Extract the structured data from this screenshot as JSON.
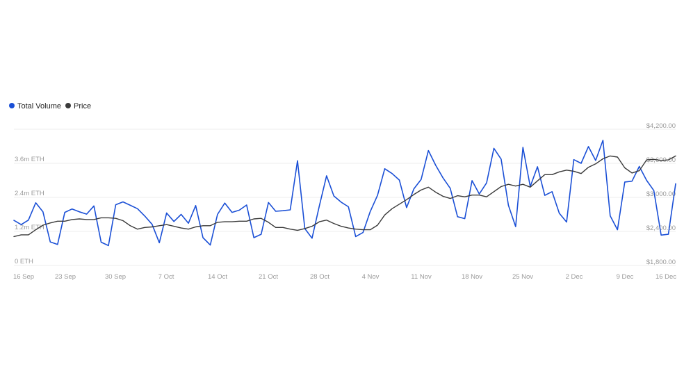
{
  "legend": {
    "volume_label": "Total Volume",
    "price_label": "Price"
  },
  "colors": {
    "volume": "#1a4fd6",
    "price": "#3a3a3a",
    "grid": "#eeeeee",
    "tick_text": "#9a9a9a"
  },
  "chart_data": {
    "type": "line",
    "title": "",
    "xlabel": "",
    "grid": true,
    "legend_position": "top-left",
    "x_ticks": [
      "16 Sep",
      "23 Sep",
      "30 Sep",
      "7 Oct",
      "14 Oct",
      "21 Oct",
      "28 Oct",
      "4 Nov",
      "11 Nov",
      "18 Nov",
      "25 Nov",
      "2 Dec",
      "9 Dec",
      "16 Dec"
    ],
    "x_range": [
      "16 Sep",
      "16 Dec"
    ],
    "left_axis": {
      "ylabel": "",
      "ylim": [
        0,
        4800000
      ],
      "ticks": [
        0,
        1200000,
        2400000,
        3600000
      ],
      "tick_labels": [
        "0 ETH",
        "1.2m ETH",
        "2.4m ETH",
        "3.6m ETH"
      ]
    },
    "right_axis": {
      "ylabel": "",
      "ylim": [
        1800,
        4200
      ],
      "ticks": [
        1800,
        2400,
        3000,
        3600,
        4200
      ],
      "tick_labels": [
        "$1,800.00",
        "$2,400.00",
        "$3,000.00",
        "$3,600.00",
        "$4,200.00"
      ]
    },
    "series": [
      {
        "name": "Total Volume",
        "axis": "left",
        "values": [
          1590000,
          1440000,
          1600000,
          2210000,
          1890000,
          830000,
          740000,
          1870000,
          1990000,
          1890000,
          1810000,
          2100000,
          820000,
          700000,
          2140000,
          2240000,
          2120000,
          2000000,
          1740000,
          1450000,
          800000,
          1850000,
          1550000,
          1800000,
          1490000,
          2110000,
          980000,
          720000,
          1800000,
          2200000,
          1870000,
          1950000,
          2130000,
          980000,
          1100000,
          2220000,
          1910000,
          1930000,
          1960000,
          3690000,
          1300000,
          960000,
          2100000,
          3160000,
          2450000,
          2230000,
          2070000,
          1020000,
          1160000,
          1900000,
          2470000,
          3410000,
          3240000,
          3010000,
          2040000,
          2700000,
          3030000,
          4050000,
          3530000,
          3090000,
          2720000,
          1720000,
          1650000,
          2990000,
          2520000,
          2910000,
          4130000,
          3750000,
          2120000,
          1370000,
          4160000,
          2780000,
          3480000,
          2470000,
          2600000,
          1840000,
          1530000,
          3730000,
          3600000,
          4190000,
          3700000,
          4410000,
          1750000,
          1260000,
          2940000,
          2970000,
          3490000,
          3000000,
          2640000,
          1070000,
          1100000,
          2880000
        ]
      },
      {
        "name": "Price",
        "axis": "right",
        "values": [
          2310,
          2340,
          2340,
          2430,
          2510,
          2550,
          2580,
          2580,
          2610,
          2620,
          2610,
          2610,
          2640,
          2640,
          2630,
          2590,
          2500,
          2440,
          2470,
          2480,
          2500,
          2520,
          2490,
          2460,
          2440,
          2480,
          2500,
          2500,
          2560,
          2570,
          2570,
          2580,
          2580,
          2620,
          2630,
          2560,
          2470,
          2470,
          2440,
          2420,
          2450,
          2490,
          2570,
          2600,
          2540,
          2490,
          2460,
          2440,
          2430,
          2430,
          2510,
          2690,
          2800,
          2880,
          2960,
          3050,
          3130,
          3180,
          3090,
          3020,
          2980,
          3030,
          3010,
          3040,
          3040,
          3010,
          3100,
          3190,
          3230,
          3200,
          3230,
          3180,
          3290,
          3400,
          3400,
          3450,
          3480,
          3460,
          3420,
          3530,
          3590,
          3680,
          3730,
          3710,
          3520,
          3430,
          3470,
          3660,
          3670,
          3650,
          3660,
          3730
        ]
      }
    ]
  }
}
